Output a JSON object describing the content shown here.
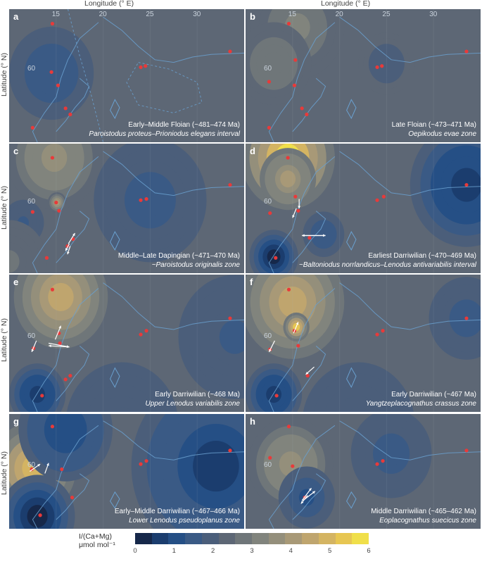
{
  "axes": {
    "xlabel": "Longitude (° E)",
    "ylabel": "Latitude (° N)",
    "xticks": [
      "15",
      "20",
      "25",
      "30"
    ],
    "yticks": [
      "60"
    ]
  },
  "colors": {
    "scale": [
      "#16284a",
      "#1b3d6e",
      "#254f85",
      "#3a5a85",
      "#4b5e7a",
      "#5d6775",
      "#6f7679",
      "#81847d",
      "#948f7b",
      "#a89977",
      "#bfa56e",
      "#d4b462",
      "#e7c652",
      "#f0df4a"
    ],
    "site": "#e83a3a",
    "coast": "#6aa0cf",
    "arrow": "#ffffff"
  },
  "legend": {
    "title_line1": "I/(Ca+Mg)",
    "title_line2": "μmol mol⁻¹",
    "ticks": [
      "0",
      "1",
      "2",
      "3",
      "4",
      "5",
      "6"
    ]
  },
  "chart_data": [
    {
      "type": "heatmap",
      "panel": "a",
      "caption_line1": "Early–Middle Floian (~481–474 Ma)",
      "caption_line2": "Paroistodus proteus–Prioniodus elegans interval",
      "xlim": [
        10,
        35
      ],
      "ylim": [
        54,
        65
      ],
      "background": 2.2,
      "blobs": [
        {
          "lon": 14.5,
          "lat": 59.7,
          "value": 1.3,
          "r": 4.5
        }
      ],
      "sites": [
        [
          14.6,
          63.8
        ],
        [
          14.5,
          59.8
        ],
        [
          15.2,
          58.7
        ],
        [
          24.5,
          60.3
        ],
        [
          24.0,
          60.2
        ],
        [
          33.5,
          61.5
        ],
        [
          16.5,
          56.3
        ],
        [
          16.0,
          56.8
        ],
        [
          12.5,
          55.2
        ]
      ],
      "arrows": []
    },
    {
      "type": "heatmap",
      "panel": "b",
      "caption_line1": "Late Floian (~473–471 Ma)",
      "caption_line2": "Oepikodus evae zone",
      "xlim": [
        10,
        35
      ],
      "ylim": [
        54,
        65
      ],
      "background": 2.2,
      "blobs": [
        {
          "lon": 15.5,
          "lat": 63.5,
          "value": 3.0,
          "r": 5
        },
        {
          "lon": 13,
          "lat": 60.5,
          "value": 2.9,
          "r": 4
        },
        {
          "lon": 25,
          "lat": 60.5,
          "value": 2.1,
          "r": 3
        }
      ],
      "sites": [
        [
          14.6,
          63.8
        ],
        [
          15.3,
          60.8
        ],
        [
          15.2,
          58.7
        ],
        [
          12.5,
          59.0
        ],
        [
          24.5,
          60.3
        ],
        [
          24.0,
          60.2
        ],
        [
          33.5,
          61.5
        ],
        [
          16.5,
          56.3
        ],
        [
          16.0,
          56.8
        ],
        [
          12.5,
          55.2
        ]
      ],
      "arrows": []
    },
    {
      "type": "heatmap",
      "panel": "c",
      "caption_line1": "Middle–Late Dapingian (~471–470 Ma)",
      "caption_line2": "~Paroistodus originalis zone",
      "xlim": [
        10,
        35
      ],
      "ylim": [
        54,
        65
      ],
      "background": 2.2,
      "blobs": [
        {
          "lon": 14.8,
          "lat": 63.8,
          "value": 3.6,
          "r": 5
        },
        {
          "lon": 15.1,
          "lat": 60.0,
          "value": 3.9,
          "r": 1
        },
        {
          "lon": 25,
          "lat": 60.2,
          "value": 1.4,
          "r": 6
        },
        {
          "lon": 11.5,
          "lat": 58.3,
          "value": 1.6,
          "r": 2.2
        },
        {
          "lon": 10,
          "lat": 55,
          "value": 2.6,
          "r": 4
        }
      ],
      "sites": [
        [
          14.6,
          63.8
        ],
        [
          15.0,
          60.0
        ],
        [
          15.3,
          59.3
        ],
        [
          12.5,
          59.2
        ],
        [
          24.6,
          60.3
        ],
        [
          24.0,
          60.2
        ],
        [
          33.5,
          61.5
        ],
        [
          16.8,
          56.9
        ],
        [
          16.2,
          56.3
        ],
        [
          14.0,
          55.3
        ]
      ],
      "arrows": [
        [
          [
            16.3,
            56.5
          ],
          [
            17.0,
            57.4
          ]
        ],
        [
          [
            16.4,
            56.5
          ],
          [
            16.0,
            55.9
          ]
        ],
        [
          [
            16.5,
            56.3
          ],
          [
            16.2,
            55.6
          ]
        ]
      ]
    },
    {
      "type": "heatmap",
      "panel": "d",
      "caption_line1": "Earliest Darriwilian (~470–469 Ma)",
      "caption_line2": "~Baltoniodus norrlandicus–Lenodus antivariabilis interval",
      "xlim": [
        10,
        35
      ],
      "ylim": [
        54,
        65
      ],
      "background": 2.2,
      "blobs": [
        {
          "lon": 14.5,
          "lat": 63.8,
          "value": 5.6,
          "r": 5
        },
        {
          "lon": 14.5,
          "lat": 62.0,
          "value": 4.2,
          "r": 3
        },
        {
          "lon": 33.5,
          "lat": 61.5,
          "value": 0.6,
          "r": 6
        },
        {
          "lon": 18.3,
          "lat": 57.3,
          "value": 1.3,
          "r": 2.2
        },
        {
          "lon": 13.0,
          "lat": 55.4,
          "value": 0.4,
          "r": 2.6
        }
      ],
      "sites": [
        [
          14.5,
          63.8
        ],
        [
          15.3,
          60.5
        ],
        [
          15.6,
          59.3
        ],
        [
          12.6,
          59.1
        ],
        [
          24.7,
          60.5
        ],
        [
          24.0,
          60.2
        ],
        [
          33.5,
          61.5
        ],
        [
          16.8,
          57.0
        ],
        [
          13.2,
          55.3
        ]
      ],
      "arrows": [
        [
          [
            15.7,
            60.3
          ],
          [
            15.7,
            59.5
          ]
        ],
        [
          [
            15.4,
            59.5
          ],
          [
            15.0,
            58.7
          ]
        ],
        [
          [
            16.0,
            57.2
          ],
          [
            18.5,
            57.2
          ]
        ],
        [
          [
            18.5,
            57.2
          ],
          [
            16.0,
            57.2
          ]
        ]
      ]
    },
    {
      "type": "heatmap",
      "panel": "e",
      "caption_line1": "Early Darriwilian (~468 Ma)",
      "caption_line2": "Upper Lenodus variabilis zone",
      "xlim": [
        10,
        35
      ],
      "ylim": [
        54,
        65
      ],
      "background": 2.2,
      "blobs": [
        {
          "lon": 15.5,
          "lat": 63.2,
          "value": 4.3,
          "r": 5
        },
        {
          "lon": 34,
          "lat": 60,
          "value": 1.7,
          "r": 6
        },
        {
          "lon": 13,
          "lat": 55.4,
          "value": 0.6,
          "r": 3
        },
        {
          "lon": 22,
          "lat": 53.0,
          "value": 1.9,
          "r": 6
        }
      ],
      "sites": [
        [
          14.6,
          63.8
        ],
        [
          15.3,
          60.3
        ],
        [
          15.4,
          59.5
        ],
        [
          12.6,
          59.1
        ],
        [
          24.6,
          60.5
        ],
        [
          24.0,
          60.2
        ],
        [
          33.5,
          61.5
        ],
        [
          16.5,
          56.9
        ],
        [
          16.0,
          56.6
        ],
        [
          13.5,
          55.3
        ]
      ],
      "arrows": [
        [
          [
            14.9,
            59.8
          ],
          [
            15.5,
            60.9
          ]
        ],
        [
          [
            12.9,
            59.7
          ],
          [
            12.4,
            58.8
          ]
        ],
        [
          [
            14.2,
            59.5
          ],
          [
            16.4,
            59.2
          ]
        ],
        [
          [
            16.4,
            59.2
          ],
          [
            14.2,
            59.3
          ]
        ]
      ]
    },
    {
      "type": "heatmap",
      "panel": "f",
      "caption_line1": "Early Darriwilian (~467 Ma)",
      "caption_line2": "Yangtzeplacognathus crassus zone",
      "xlim": [
        10,
        35
      ],
      "ylim": [
        54,
        65
      ],
      "background": 2.2,
      "blobs": [
        {
          "lon": 15.0,
          "lat": 62.8,
          "value": 4.6,
          "r": 5.5
        },
        {
          "lon": 15.4,
          "lat": 60.8,
          "value": 5.2,
          "r": 1.4
        },
        {
          "lon": 33.5,
          "lat": 61.5,
          "value": 1.4,
          "r": 4
        },
        {
          "lon": 13,
          "lat": 55.4,
          "value": 0.6,
          "r": 3
        },
        {
          "lon": 22,
          "lat": 53,
          "value": 1.8,
          "r": 6
        }
      ],
      "sites": [
        [
          14.6,
          63.8
        ],
        [
          15.2,
          60.5
        ],
        [
          15.6,
          59.3
        ],
        [
          12.6,
          59.0
        ],
        [
          24.6,
          60.5
        ],
        [
          24.0,
          60.2
        ],
        [
          33.5,
          61.5
        ],
        [
          16.6,
          56.9
        ],
        [
          13.3,
          55.3
        ]
      ],
      "arrows": [
        [
          [
            15.1,
            60.3
          ],
          [
            15.6,
            61.2
          ]
        ],
        [
          [
            13.1,
            59.7
          ],
          [
            12.5,
            58.8
          ]
        ],
        [
          [
            17.3,
            57.6
          ],
          [
            16.4,
            57.0
          ]
        ]
      ]
    },
    {
      "type": "heatmap",
      "panel": "g",
      "caption_line1": "Early–Middle Darriwilian (~467–466 Ma)",
      "caption_line2": "Lower Lenodus pseudoplanus zone",
      "xlim": [
        10,
        35
      ],
      "ylim": [
        54,
        65
      ],
      "background": 2.2,
      "blobs": [
        {
          "lon": 12.6,
          "lat": 59.8,
          "value": 5.0,
          "r": 4.5
        },
        {
          "lon": 16,
          "lat": 63.5,
          "value": 0.9,
          "r": 5
        },
        {
          "lon": 32,
          "lat": 60,
          "value": 0.7,
          "r": 9
        },
        {
          "lon": 13,
          "lat": 55.2,
          "value": 0.4,
          "r": 4
        }
      ],
      "sites": [
        [
          14.6,
          63.8
        ],
        [
          12.4,
          59.7
        ],
        [
          15.6,
          59.7
        ],
        [
          24.6,
          60.5
        ],
        [
          24.0,
          60.2
        ],
        [
          33.5,
          61.5
        ],
        [
          16.7,
          57.0
        ],
        [
          13.3,
          55.3
        ]
      ],
      "arrows": [
        [
          [
            12.2,
            59.5
          ],
          [
            13.3,
            60.2
          ]
        ],
        [
          [
            13.8,
            59.3
          ],
          [
            14.2,
            60.3
          ]
        ]
      ]
    },
    {
      "type": "heatmap",
      "panel": "h",
      "caption_line1": "Middle Darriwilian (~465–462 Ma)",
      "caption_line2": "Eoplacognathus suecicus zone",
      "xlim": [
        10,
        35
      ],
      "ylim": [
        54,
        65
      ],
      "background": 2.2,
      "blobs": [
        {
          "lon": 14.8,
          "lat": 60.2,
          "value": 3.7,
          "r": 4.5
        },
        {
          "lon": 25.5,
          "lat": 61.2,
          "value": 1.4,
          "r": 4.3
        },
        {
          "lon": 16.5,
          "lat": 57.0,
          "value": 1.1,
          "r": 3
        }
      ],
      "sites": [
        [
          14.6,
          63.8
        ],
        [
          15.0,
          60.0
        ],
        [
          12.6,
          60.8
        ],
        [
          24.6,
          60.5
        ],
        [
          24.0,
          60.2
        ],
        [
          33.5,
          61.5
        ],
        [
          16.3,
          57.0
        ]
      ],
      "arrows": [
        [
          [
            16.0,
            56.7
          ],
          [
            17.0,
            57.9
          ]
        ],
        [
          [
            16.1,
            56.7
          ],
          [
            17.4,
            57.6
          ]
        ],
        [
          [
            16.6,
            57.2
          ],
          [
            15.9,
            56.4
          ]
        ]
      ]
    }
  ]
}
